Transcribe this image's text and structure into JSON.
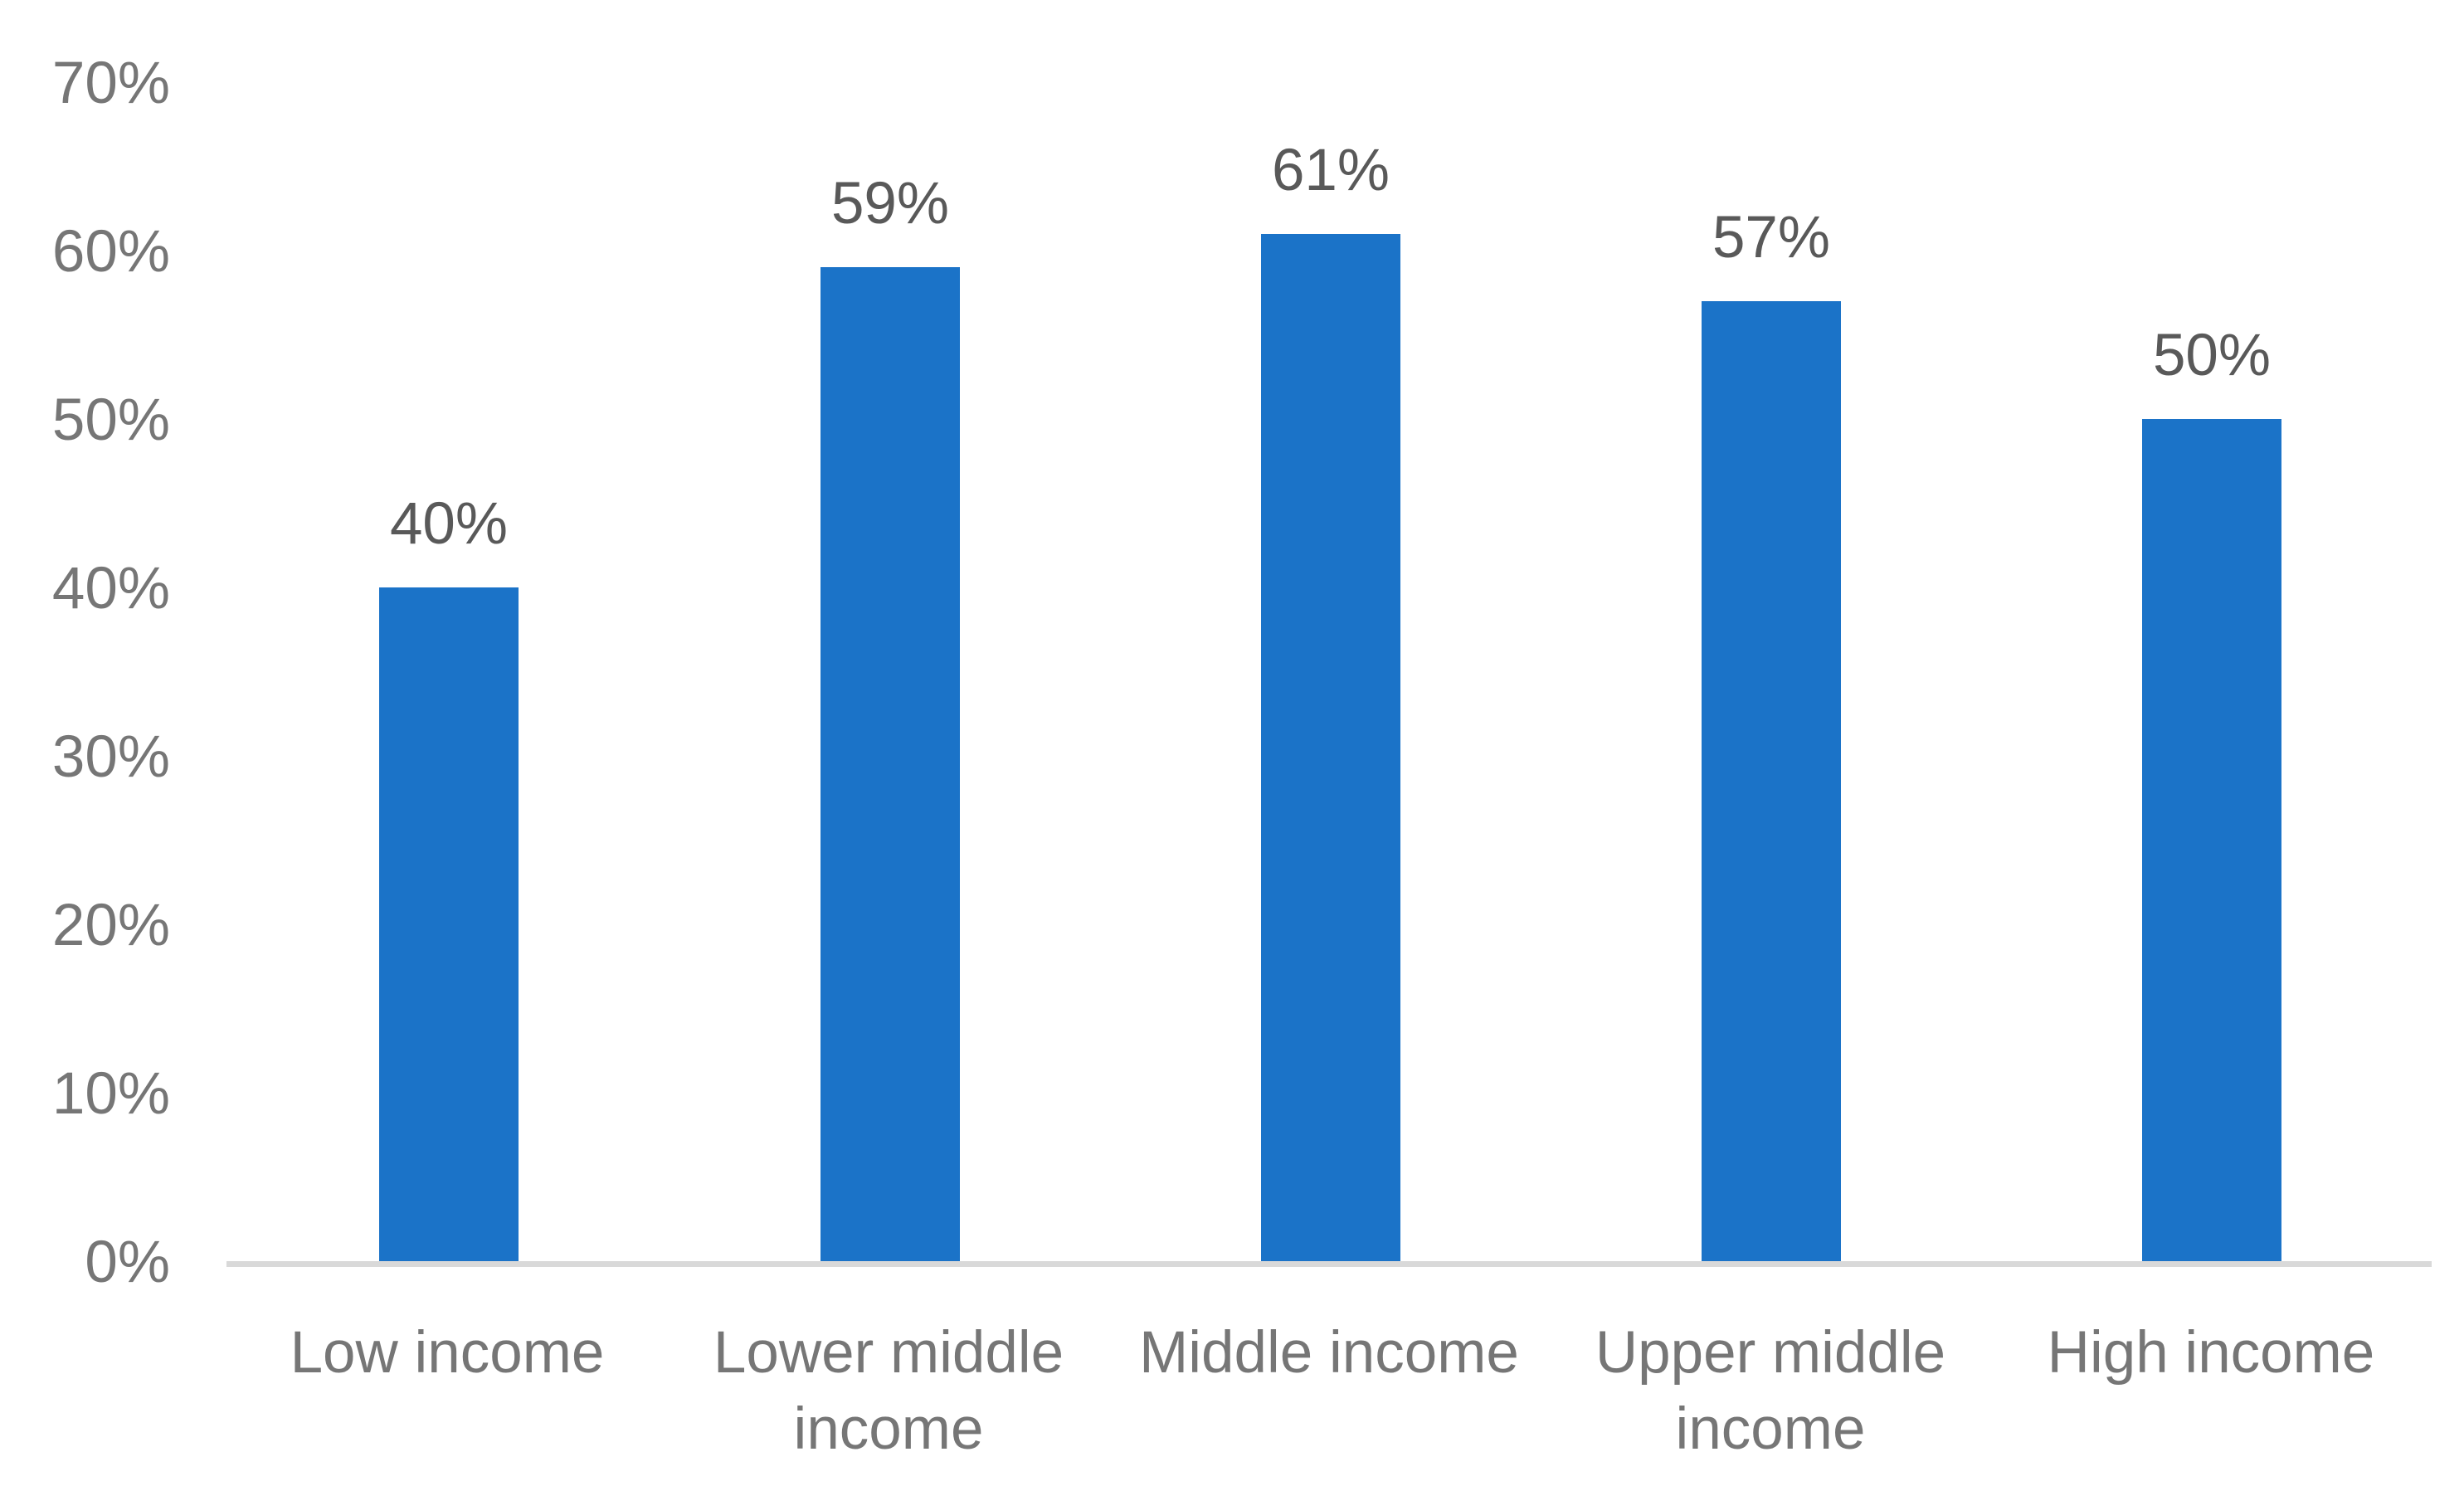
{
  "chart_data": {
    "type": "bar",
    "categories": [
      "Low income",
      "Lower middle income",
      "Middle income",
      "Upper middle income",
      "High income"
    ],
    "values": [
      40,
      59,
      61,
      57,
      50
    ],
    "data_labels": [
      "40%",
      "59%",
      "61%",
      "57%",
      "50%"
    ],
    "y_ticks": [
      "0%",
      "10%",
      "20%",
      "30%",
      "40%",
      "50%",
      "60%",
      "70%"
    ],
    "ylim": [
      0,
      70
    ],
    "xlabel": "",
    "ylabel": "",
    "grid": "off",
    "legend": "none",
    "colors": {
      "bar": "#1b73c8",
      "axis_line": "#d9d9d9",
      "tick_label": "#767676",
      "data_label": "#595959"
    }
  }
}
